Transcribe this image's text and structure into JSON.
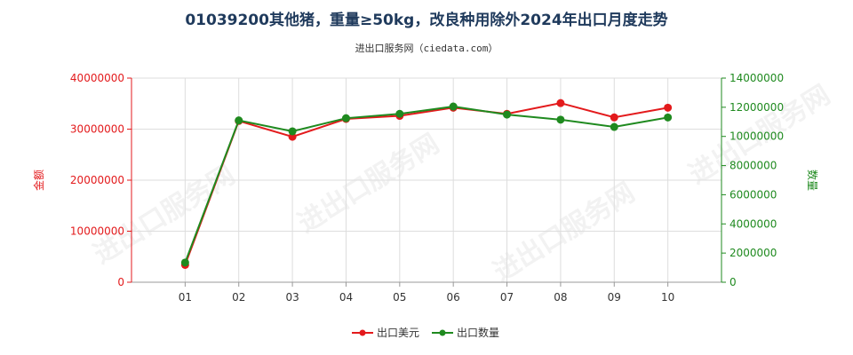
{
  "watermark": "进出口服务网",
  "colors": {
    "amount": "#e31a1c",
    "quantity": "#1f8a1f",
    "grid": "#dddddd",
    "title": "#1f3a5c"
  },
  "chart_data": {
    "type": "line",
    "title": "01039200其他猪，重量≥50kg，改良种用除外2024年出口月度走势",
    "subtitle": "进出口服务网（ciedata.com）",
    "categories": [
      "01",
      "02",
      "03",
      "04",
      "05",
      "06",
      "07",
      "08",
      "09",
      "10"
    ],
    "series": [
      {
        "name": "出口美元",
        "axis": "left",
        "values": [
          3400000,
          31600000,
          28500000,
          32000000,
          32600000,
          34200000,
          33000000,
          35100000,
          32300000,
          34200000
        ]
      },
      {
        "name": "出口数量",
        "axis": "right",
        "values": [
          1350000,
          11100000,
          10350000,
          11250000,
          11550000,
          12050000,
          11500000,
          11150000,
          10650000,
          11300000
        ]
      }
    ],
    "ylabel": "金额",
    "ylabel_right": "数量",
    "ylim": [
      0,
      40000000
    ],
    "ylim_right": [
      0,
      14000000
    ],
    "y_ticks": [
      "0",
      "10000000",
      "20000000",
      "30000000",
      "40000000"
    ],
    "y_ticks_right": [
      "0",
      "2000000",
      "4000000",
      "6000000",
      "8000000",
      "10000000",
      "12000000",
      "14000000"
    ],
    "grid": true,
    "legend": "bottom-center"
  }
}
